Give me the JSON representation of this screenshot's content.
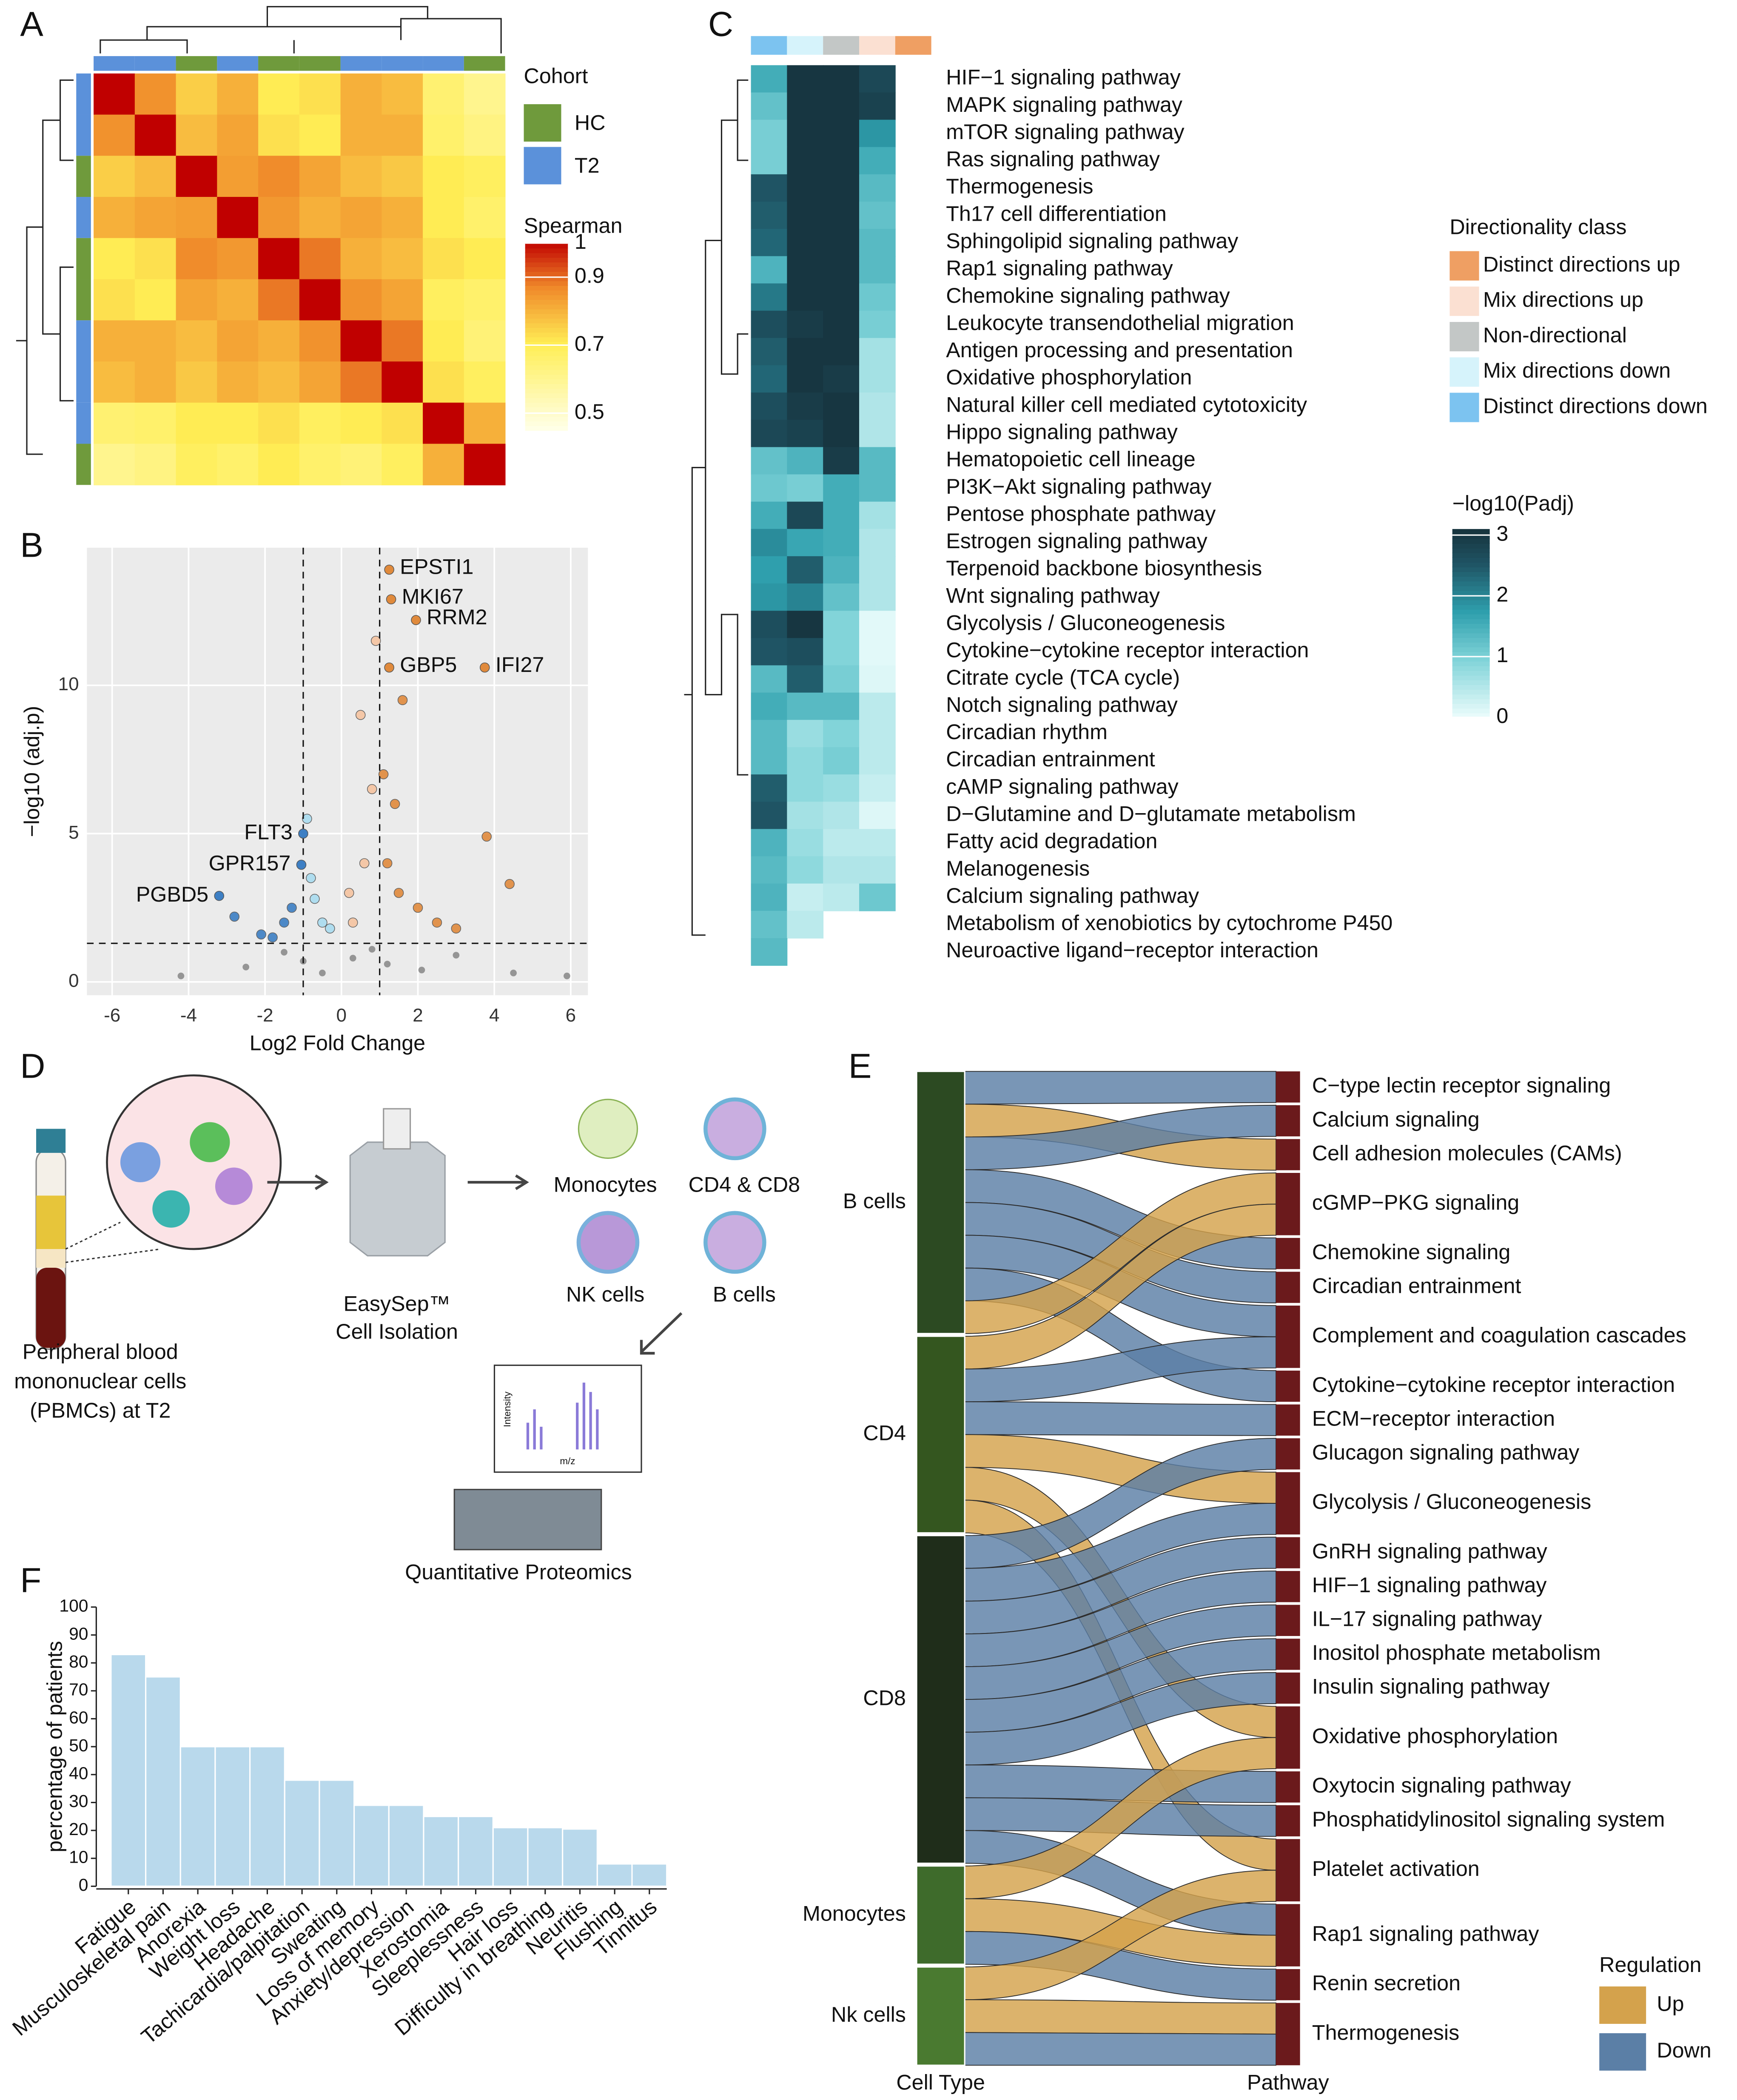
{
  "panel_labels": [
    "A",
    "B",
    "C",
    "D",
    "E",
    "F"
  ],
  "diagram": {
    "pbmc_lines": [
      "Peripheral blood",
      "mononuclear cells",
      "(PBMCs) at T2"
    ],
    "isolation_lines": [
      "EasySep™",
      "Cell Isolation"
    ],
    "cells": [
      "Monocytes",
      "CD4 & CD8",
      "NK cells",
      "B cells"
    ],
    "ms_axis": [
      "Intensity",
      "m/z"
    ],
    "proteomics": "Quantitative Proteomics"
  },
  "chart_data": [
    {
      "type": "corrmap",
      "legend_title": "Cohort",
      "cohort_classes": [
        {
          "name": "HC",
          "color": "#6f9a3c"
        },
        {
          "name": "T2",
          "color": "#5b91da"
        }
      ],
      "cohort": [
        "T2",
        "T2",
        "HC",
        "T2",
        "HC",
        "HC",
        "T2",
        "T2",
        "T2",
        "HC"
      ],
      "color_title": "Spearman",
      "clim": [
        0.45,
        1
      ],
      "cticks": [
        0.5,
        0.7,
        0.9,
        1
      ],
      "matrix": [
        [
          1,
          0.85,
          0.75,
          0.8,
          0.7,
          0.72,
          0.8,
          0.78,
          0.65,
          0.6
        ],
        [
          0.85,
          1,
          0.78,
          0.82,
          0.72,
          0.7,
          0.8,
          0.8,
          0.66,
          0.62
        ],
        [
          0.75,
          0.78,
          1,
          0.83,
          0.86,
          0.82,
          0.78,
          0.76,
          0.7,
          0.68
        ],
        [
          0.8,
          0.82,
          0.83,
          1,
          0.84,
          0.8,
          0.82,
          0.8,
          0.7,
          0.66
        ],
        [
          0.7,
          0.72,
          0.86,
          0.84,
          1,
          0.88,
          0.8,
          0.78,
          0.72,
          0.7
        ],
        [
          0.72,
          0.7,
          0.82,
          0.8,
          0.88,
          1,
          0.85,
          0.82,
          0.68,
          0.66
        ],
        [
          0.8,
          0.8,
          0.78,
          0.82,
          0.8,
          0.85,
          1,
          0.88,
          0.7,
          0.64
        ],
        [
          0.78,
          0.8,
          0.76,
          0.8,
          0.78,
          0.82,
          0.88,
          1,
          0.72,
          0.68
        ],
        [
          0.65,
          0.66,
          0.7,
          0.7,
          0.72,
          0.68,
          0.7,
          0.72,
          1,
          0.8
        ],
        [
          0.6,
          0.62,
          0.68,
          0.66,
          0.7,
          0.66,
          0.64,
          0.68,
          0.8,
          1
        ]
      ]
    },
    {
      "type": "scatter",
      "xlabel": "Log2 Fold Change",
      "ylabel": "−log10 (adj.p)",
      "xlim": [
        -6.66,
        6.45
      ],
      "ylim": [
        -0.45,
        14.64
      ],
      "xticks": [
        -6,
        -4,
        -2,
        0,
        2,
        4,
        6
      ],
      "yticks": [
        0,
        5,
        10
      ],
      "thresholds": {
        "x": [
          -1,
          1
        ],
        "y": 1.3
      },
      "grid": true,
      "series": [
        {
          "color": "#8c8c8c",
          "x": [
            -2.5,
            -1.5,
            -0.5,
            0.3,
            1.2,
            2.1,
            3.0,
            4.5,
            5.9,
            -4.2,
            0.8,
            -1.0
          ],
          "y": [
            0.5,
            1.0,
            0.3,
            0.8,
            0.6,
            0.4,
            0.9,
            0.3,
            0.2,
            0.2,
            1.1,
            0.7
          ]
        },
        {
          "color": "#a9dcf0",
          "x": [
            -0.8,
            -0.5,
            -0.9,
            -0.3,
            -0.7
          ],
          "y": [
            3.5,
            2.0,
            5.5,
            1.8,
            2.8
          ]
        },
        {
          "color": "#f5c4a0",
          "x": [
            0.3,
            0.6,
            0.8,
            0.9,
            0.5,
            0.2
          ],
          "y": [
            2.0,
            4.0,
            6.5,
            11.5,
            9.0,
            3.0
          ]
        },
        {
          "color": "#3d7fc4",
          "x": [
            -1.5,
            -2.1,
            -2.8,
            -1.3,
            -1.8
          ],
          "y": [
            2.0,
            1.6,
            2.2,
            2.5,
            1.5
          ]
        },
        {
          "color": "#e08a3c",
          "x": [
            1.2,
            1.5,
            2.0,
            2.5,
            3.0,
            1.1,
            1.4,
            4.4,
            3.8,
            1.6
          ],
          "y": [
            4.0,
            3.0,
            2.5,
            2.0,
            1.8,
            7.0,
            6.0,
            3.3,
            4.9,
            9.5
          ]
        }
      ],
      "labeled": [
        {
          "label": "EPSTI1",
          "x": 1.25,
          "y": 13.9,
          "color": "#e08a3c"
        },
        {
          "label": "MKI67",
          "x": 1.3,
          "y": 12.9,
          "color": "#e08a3c"
        },
        {
          "label": "RRM2",
          "x": 1.95,
          "y": 12.2,
          "color": "#e08a3c"
        },
        {
          "label": "GBP5",
          "x": 1.25,
          "y": 10.6,
          "color": "#e08a3c"
        },
        {
          "label": "IFI27",
          "x": 3.75,
          "y": 10.6,
          "color": "#e08a3c"
        },
        {
          "label": "FLT3",
          "x": -1.0,
          "y": 5.0,
          "color": "#3d7fc4"
        },
        {
          "label": "GPR157",
          "x": -1.05,
          "y": 3.95,
          "color": "#3d7fc4"
        },
        {
          "label": "PGBD5",
          "x": -3.2,
          "y": 2.9,
          "color": "#3d7fc4"
        }
      ]
    },
    {
      "type": "heatmap",
      "rows": [
        "HIF−1 signaling pathway",
        "MAPK signaling pathway",
        "mTOR signaling pathway",
        "Ras signaling pathway",
        "Thermogenesis",
        "Th17 cell differentiation",
        "Sphingolipid signaling pathway",
        "Rap1 signaling pathway",
        "Chemokine signaling pathway",
        "Leukocyte transendothelial migration",
        "Antigen processing and presentation",
        "Oxidative phosphorylation",
        "Natural killer cell mediated cytotoxicity",
        "Hippo signaling pathway",
        "Hematopoietic cell lineage",
        "PI3K−Akt signaling pathway",
        "Pentose phosphate pathway",
        "Estrogen signaling pathway",
        "Terpenoid backbone biosynthesis",
        "Wnt signaling pathway",
        "Glycolysis / Gluconeogenesis",
        "Cytokine−cytokine receptor interaction",
        "Citrate cycle (TCA cycle)",
        "Notch signaling pathway",
        "Circadian rhythm",
        "Circadian entrainment",
        "cAMP signaling pathway",
        "D−Glutamine and D−glutamate metabolism",
        "Fatty acid degradation",
        "Melanogenesis",
        "Calcium signaling pathway",
        "Metabolism of xenobiotics by cytochrome P450",
        "Neuroactive ligand−receptor interaction"
      ],
      "values": [
        [
          1.5,
          3,
          3,
          2.7,
          null
        ],
        [
          1.2,
          3,
          3,
          2.8,
          null
        ],
        [
          1.0,
          3,
          3,
          1.8,
          null
        ],
        [
          1.0,
          3,
          3,
          1.5,
          null
        ],
        [
          2.5,
          3,
          3,
          1.3,
          null
        ],
        [
          2.4,
          3,
          3,
          1.2,
          null
        ],
        [
          2.3,
          3,
          3,
          1.3,
          null
        ],
        [
          1.4,
          3,
          3,
          1.3,
          null
        ],
        [
          2.1,
          3,
          3,
          1.1,
          null
        ],
        [
          2.6,
          2.9,
          3,
          1.0,
          null
        ],
        [
          2.4,
          3,
          3,
          0.6,
          null
        ],
        [
          2.3,
          3,
          2.9,
          0.6,
          null
        ],
        [
          2.6,
          2.9,
          3,
          0.5,
          null
        ],
        [
          2.7,
          2.8,
          3,
          0.5,
          null
        ],
        [
          1.2,
          1.4,
          2.9,
          1.3,
          null
        ],
        [
          1.1,
          1.0,
          1.5,
          1.3,
          null
        ],
        [
          1.5,
          2.7,
          1.5,
          0.6,
          null
        ],
        [
          1.9,
          1.6,
          1.5,
          0.5,
          null
        ],
        [
          1.7,
          2.4,
          1.4,
          0.5,
          null
        ],
        [
          1.8,
          2.0,
          1.2,
          0.5,
          null
        ],
        [
          2.6,
          3,
          0.9,
          0.05,
          null
        ],
        [
          2.5,
          2.6,
          0.9,
          0.05,
          null
        ],
        [
          1.3,
          2.4,
          1.0,
          0.1,
          null
        ],
        [
          1.5,
          1.3,
          1.3,
          0.4,
          null
        ],
        [
          1.3,
          0.7,
          0.9,
          0.4,
          null
        ],
        [
          1.3,
          0.8,
          1.0,
          0.4,
          null
        ],
        [
          2.4,
          0.8,
          0.7,
          0.3,
          null
        ],
        [
          2.5,
          0.6,
          0.5,
          0.1,
          null
        ],
        [
          1.4,
          0.7,
          0.4,
          0.4,
          null
        ],
        [
          1.3,
          0.8,
          0.5,
          0.5,
          null
        ],
        [
          1.4,
          0.3,
          0.4,
          1.1,
          null
        ],
        [
          1.2,
          0.4,
          null,
          null,
          null
        ],
        [
          1.3,
          null,
          null,
          null,
          null
        ]
      ],
      "legend_title": "Directionality class",
      "classes": [
        {
          "name": "Distinct directions up",
          "color": "#ef9f63"
        },
        {
          "name": "Mix directions up",
          "color": "#fbe0d2"
        },
        {
          "name": "Non-directional",
          "color": "#c3c7c6"
        },
        {
          "name": "Mix directions down",
          "color": "#d6f3fb"
        },
        {
          "name": "Distinct directions down",
          "color": "#7cc3f0"
        }
      ],
      "column_classes": [
        4,
        3,
        2,
        1,
        0
      ],
      "color_title": "−log10(Padj)",
      "clim": [
        0,
        3.1
      ],
      "cticks": [
        0,
        1,
        2,
        3
      ]
    },
    {
      "type": "sankey",
      "source_title": "Cell Type",
      "target_title": "Pathway",
      "sources": [
        {
          "name": "B cells",
          "color": "#2c4a22"
        },
        {
          "name": "CD4",
          "color": "#34561f"
        },
        {
          "name": "CD8",
          "color": "#1f2d1a"
        },
        {
          "name": "Monocytes",
          "color": "#3e6b2b"
        },
        {
          "name": "Nk cells",
          "color": "#4a7a30"
        }
      ],
      "targets": [
        "C−type lectin receptor signaling",
        "Calcium signaling",
        "Cell adhesion molecules (CAMs)",
        "cGMP−PKG signaling",
        "Chemokine signaling",
        "Circadian entrainment",
        "Complement and coagulation cascades",
        "Cytokine−cytokine receptor interaction",
        "ECM−receptor interaction",
        "Glucagon signaling pathway",
        "Glycolysis / Gluconeogenesis",
        "GnRH signaling pathway",
        "HIF−1 signaling pathway",
        "IL−17 signaling pathway",
        "Inositol phosphate metabolism",
        "Insulin signaling pathway",
        "Oxidative phosphorylation",
        "Oxytocin signaling pathway",
        "Phosphatidylinositol signaling system",
        "Platelet activation",
        "Rap1 signaling pathway",
        "Renin secretion",
        "Thermogenesis"
      ],
      "target_color": "#6b1a1c",
      "legend_title": "Regulation",
      "regulations": [
        {
          "name": "Up",
          "color": "#d4a24c"
        },
        {
          "name": "Down",
          "color": "#5b7fa6"
        }
      ],
      "links": [
        {
          "source": 0,
          "target": 0,
          "regulation": 1,
          "value": 1
        },
        {
          "source": 0,
          "target": 2,
          "regulation": 0,
          "value": 1
        },
        {
          "source": 0,
          "target": 1,
          "regulation": 1,
          "value": 1
        },
        {
          "source": 0,
          "target": 4,
          "regulation": 1,
          "value": 1
        },
        {
          "source": 0,
          "target": 5,
          "regulation": 1,
          "value": 1
        },
        {
          "source": 0,
          "target": 6,
          "regulation": 1,
          "value": 1
        },
        {
          "source": 0,
          "target": 7,
          "regulation": 1,
          "value": 1
        },
        {
          "source": 0,
          "target": 3,
          "regulation": 0,
          "value": 1
        },
        {
          "source": 1,
          "target": 3,
          "regulation": 0,
          "value": 1
        },
        {
          "source": 1,
          "target": 6,
          "regulation": 1,
          "value": 1
        },
        {
          "source": 1,
          "target": 8,
          "regulation": 1,
          "value": 1
        },
        {
          "source": 1,
          "target": 10,
          "regulation": 0,
          "value": 1
        },
        {
          "source": 1,
          "target": 16,
          "regulation": 0,
          "value": 1
        },
        {
          "source": 1,
          "target": 19,
          "regulation": 0,
          "value": 1
        },
        {
          "source": 2,
          "target": 9,
          "regulation": 1,
          "value": 1
        },
        {
          "source": 2,
          "target": 10,
          "regulation": 1,
          "value": 1
        },
        {
          "source": 2,
          "target": 11,
          "regulation": 1,
          "value": 1
        },
        {
          "source": 2,
          "target": 12,
          "regulation": 1,
          "value": 1
        },
        {
          "source": 2,
          "target": 13,
          "regulation": 1,
          "value": 1
        },
        {
          "source": 2,
          "target": 14,
          "regulation": 1,
          "value": 1
        },
        {
          "source": 2,
          "target": 15,
          "regulation": 1,
          "value": 1
        },
        {
          "source": 2,
          "target": 17,
          "regulation": 1,
          "value": 1
        },
        {
          "source": 2,
          "target": 18,
          "regulation": 1,
          "value": 1
        },
        {
          "source": 2,
          "target": 20,
          "regulation": 1,
          "value": 1
        },
        {
          "source": 3,
          "target": 16,
          "regulation": 0,
          "value": 1
        },
        {
          "source": 3,
          "target": 20,
          "regulation": 0,
          "value": 1
        },
        {
          "source": 3,
          "target": 21,
          "regulation": 1,
          "value": 1
        },
        {
          "source": 4,
          "target": 19,
          "regulation": 0,
          "value": 1
        },
        {
          "source": 4,
          "target": 22,
          "regulation": 0,
          "value": 1
        },
        {
          "source": 4,
          "target": 22,
          "regulation": 1,
          "value": 1
        }
      ]
    },
    {
      "type": "bar",
      "ylabel": "percentage of patients",
      "color": "#b9d9ec",
      "categories": [
        "Fatigue",
        "Musculoskeletal pain",
        "Anorexia",
        "Weight loss",
        "Headache",
        "Tachicardia/palpitation",
        "Sweating",
        "Loss of memory",
        "Anxiety/depression",
        "Xerostomia",
        "Sleeplessness",
        "Hair loss",
        "Difficulty in breathing",
        "Neuritis",
        "Flushing",
        "Tinnitus"
      ],
      "values": [
        83,
        75,
        50,
        50,
        50,
        38,
        38,
        29,
        29,
        25,
        25,
        21,
        21,
        20.5,
        8,
        8
      ],
      "ylim": [
        0,
        100
      ],
      "yticks": [
        0,
        10,
        20,
        30,
        40,
        50,
        60,
        70,
        80,
        90,
        100
      ]
    }
  ]
}
